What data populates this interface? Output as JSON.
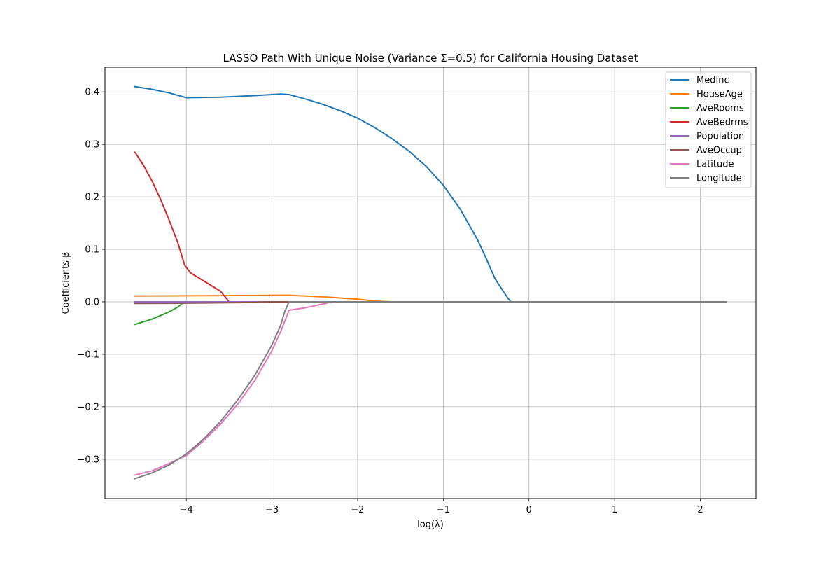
{
  "chart_data": {
    "type": "line",
    "title": "LASSO Path With Unique Noise (Variance Σ=0.5) for California Housing Dataset",
    "xlabel": "log(λ)",
    "ylabel": "Coefficients β",
    "xlim": [
      -4.95,
      2.65
    ],
    "ylim": [
      -0.375,
      0.447
    ],
    "xticks": [
      -4,
      -3,
      -2,
      -1,
      0,
      1,
      2
    ],
    "xtick_labels": [
      "−4",
      "−3",
      "−2",
      "−1",
      "0",
      "1",
      "2"
    ],
    "yticks": [
      -0.3,
      -0.2,
      -0.1,
      0.0,
      0.1,
      0.2,
      0.3,
      0.4
    ],
    "ytick_labels": [
      "−0.3",
      "−0.2",
      "−0.1",
      "0.0",
      "0.1",
      "0.2",
      "0.3",
      "0.4"
    ],
    "grid": true,
    "legend_position": "upper right",
    "series": [
      {
        "name": "MedInc",
        "color": "#1f77b4",
        "x": [
          -4.6,
          -4.4,
          -4.2,
          -4.0,
          -3.6,
          -3.2,
          -2.9,
          -2.8,
          -2.6,
          -2.4,
          -2.2,
          -2.0,
          -1.8,
          -1.6,
          -1.4,
          -1.2,
          -1.0,
          -0.8,
          -0.6,
          -0.5,
          -0.4,
          -0.3,
          -0.25,
          -0.21,
          2.3
        ],
        "y": [
          0.41,
          0.405,
          0.398,
          0.389,
          0.39,
          0.393,
          0.396,
          0.395,
          0.386,
          0.376,
          0.364,
          0.35,
          0.332,
          0.311,
          0.287,
          0.258,
          0.222,
          0.176,
          0.118,
          0.083,
          0.045,
          0.02,
          0.008,
          0.0,
          0.0
        ]
      },
      {
        "name": "HouseAge",
        "color": "#ff7f0e",
        "x": [
          -4.6,
          -4.0,
          -3.4,
          -2.8,
          -2.4,
          -2.0,
          -1.8,
          -1.6,
          2.3
        ],
        "y": [
          0.011,
          0.0115,
          0.012,
          0.0125,
          0.0095,
          0.005,
          0.0015,
          0.0,
          0.0
        ]
      },
      {
        "name": "AveRooms",
        "color": "#2ca02c",
        "x": [
          -4.6,
          -4.4,
          -4.2,
          -4.1,
          -4.02,
          2.3
        ],
        "y": [
          -0.043,
          -0.033,
          -0.019,
          -0.01,
          0.0,
          0.0
        ]
      },
      {
        "name": "AveBedrms",
        "color": "#d62728",
        "x": [
          -4.6,
          -4.5,
          -4.4,
          -4.3,
          -4.2,
          -4.1,
          -4.02,
          -3.95,
          -3.8,
          -3.6,
          -3.5,
          2.3
        ],
        "y": [
          0.285,
          0.26,
          0.23,
          0.195,
          0.155,
          0.113,
          0.07,
          0.055,
          0.04,
          0.02,
          0.0,
          0.0
        ]
      },
      {
        "name": "Population",
        "color": "#9467bd",
        "x": [
          -4.6,
          2.3
        ],
        "y": [
          0.0,
          0.0
        ]
      },
      {
        "name": "AveOccup",
        "color": "#8c564b",
        "x": [
          -4.6,
          -4.0,
          -3.4,
          -3.0,
          2.3
        ],
        "y": [
          -0.003,
          -0.0025,
          -0.0015,
          0.0,
          0.0
        ]
      },
      {
        "name": "Latitude",
        "color": "#e377c2",
        "x": [
          -4.6,
          -4.4,
          -4.2,
          -4.0,
          -3.8,
          -3.6,
          -3.4,
          -3.2,
          -3.0,
          -2.9,
          -2.8,
          -2.6,
          -2.4,
          -2.3,
          2.3
        ],
        "y": [
          -0.33,
          -0.322,
          -0.308,
          -0.293,
          -0.265,
          -0.233,
          -0.195,
          -0.15,
          -0.093,
          -0.057,
          -0.016,
          -0.011,
          -0.004,
          0.0,
          0.0
        ]
      },
      {
        "name": "Longitude",
        "color": "#7f7f7f",
        "x": [
          -4.6,
          -4.4,
          -4.2,
          -4.0,
          -3.8,
          -3.6,
          -3.4,
          -3.2,
          -3.0,
          -2.9,
          -2.85,
          -2.8,
          2.3
        ],
        "y": [
          -0.337,
          -0.326,
          -0.311,
          -0.29,
          -0.262,
          -0.228,
          -0.187,
          -0.14,
          -0.082,
          -0.045,
          -0.018,
          0.0,
          0.0
        ]
      }
    ]
  }
}
